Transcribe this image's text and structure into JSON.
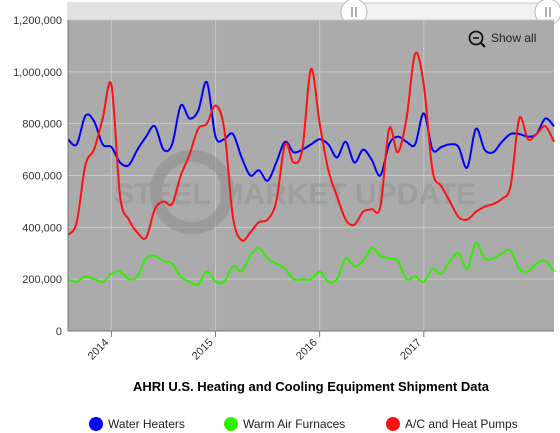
{
  "chart_data": {
    "type": "line",
    "title": "AHRI U.S. Heating and Cooling Equipment Shipment Data",
    "xlabel": "",
    "ylabel": "",
    "ylim": [
      0,
      1200000
    ],
    "yticks": [
      "0",
      "200,000",
      "400,000",
      "600,000",
      "800,000",
      "1,000,000",
      "1,200,000"
    ],
    "xticks": [
      "2014",
      "2015",
      "2016",
      "2017"
    ],
    "x_start": "2013-08",
    "x_end": "2018-04",
    "grid": true,
    "legend_position": "bottom",
    "x": [
      "2013-08",
      "2013-09",
      "2013-10",
      "2013-11",
      "2013-12",
      "2014-01",
      "2014-02",
      "2014-03",
      "2014-04",
      "2014-05",
      "2014-06",
      "2014-07",
      "2014-08",
      "2014-09",
      "2014-10",
      "2014-11",
      "2014-12",
      "2015-01",
      "2015-02",
      "2015-03",
      "2015-04",
      "2015-05",
      "2015-06",
      "2015-07",
      "2015-08",
      "2015-09",
      "2015-10",
      "2015-11",
      "2015-12",
      "2016-01",
      "2016-02",
      "2016-03",
      "2016-04",
      "2016-05",
      "2016-06",
      "2016-07",
      "2016-08",
      "2016-09",
      "2016-10",
      "2016-11",
      "2016-12",
      "2017-01",
      "2017-02",
      "2017-03",
      "2017-04",
      "2017-05",
      "2017-06",
      "2017-07",
      "2017-08",
      "2017-09",
      "2017-10",
      "2017-11",
      "2017-12",
      "2018-01",
      "2018-02",
      "2018-03",
      "2018-04"
    ],
    "series": [
      {
        "name": "Water Heaters",
        "color": "#0000ff",
        "values": [
          740,
          720,
          830,
          810,
          720,
          710,
          650,
          640,
          700,
          750,
          790,
          700,
          720,
          870,
          820,
          850,
          960,
          750,
          740,
          760,
          670,
          600,
          620,
          580,
          650,
          730,
          690,
          700,
          720,
          740,
          720,
          670,
          730,
          650,
          700,
          660,
          600,
          720,
          750,
          730,
          720,
          840,
          700,
          710,
          720,
          710,
          630,
          780,
          700,
          690,
          730,
          760,
          760,
          750,
          760,
          820,
          790
        ]
      },
      {
        "name": "Warm Air Furnaces",
        "color": "#33ee00",
        "values": [
          200,
          190,
          210,
          200,
          190,
          220,
          230,
          200,
          210,
          280,
          290,
          270,
          260,
          210,
          190,
          180,
          230,
          190,
          190,
          250,
          230,
          290,
          320,
          280,
          260,
          240,
          200,
          200,
          200,
          230,
          190,
          200,
          280,
          250,
          270,
          320,
          290,
          280,
          270,
          200,
          210,
          190,
          240,
          220,
          270,
          300,
          240,
          340,
          280,
          280,
          300,
          310,
          240,
          230,
          260,
          270,
          230
        ]
      },
      {
        "name": "A/C and Heat Pumps",
        "color": "#ff1111",
        "values": [
          370,
          420,
          640,
          700,
          820,
          950,
          520,
          430,
          380,
          360,
          470,
          500,
          490,
          600,
          680,
          780,
          800,
          870,
          780,
          440,
          350,
          380,
          420,
          430,
          500,
          720,
          650,
          700,
          1010,
          800,
          620,
          520,
          430,
          410,
          460,
          470,
          480,
          780,
          690,
          820,
          1070,
          950,
          620,
          560,
          500,
          440,
          430,
          460,
          480,
          490,
          510,
          560,
          820,
          740,
          760,
          790,
          730
        ]
      }
    ]
  },
  "ui": {
    "show_all": "Show all",
    "watermark": "STEEL MARKET UPDATE"
  }
}
